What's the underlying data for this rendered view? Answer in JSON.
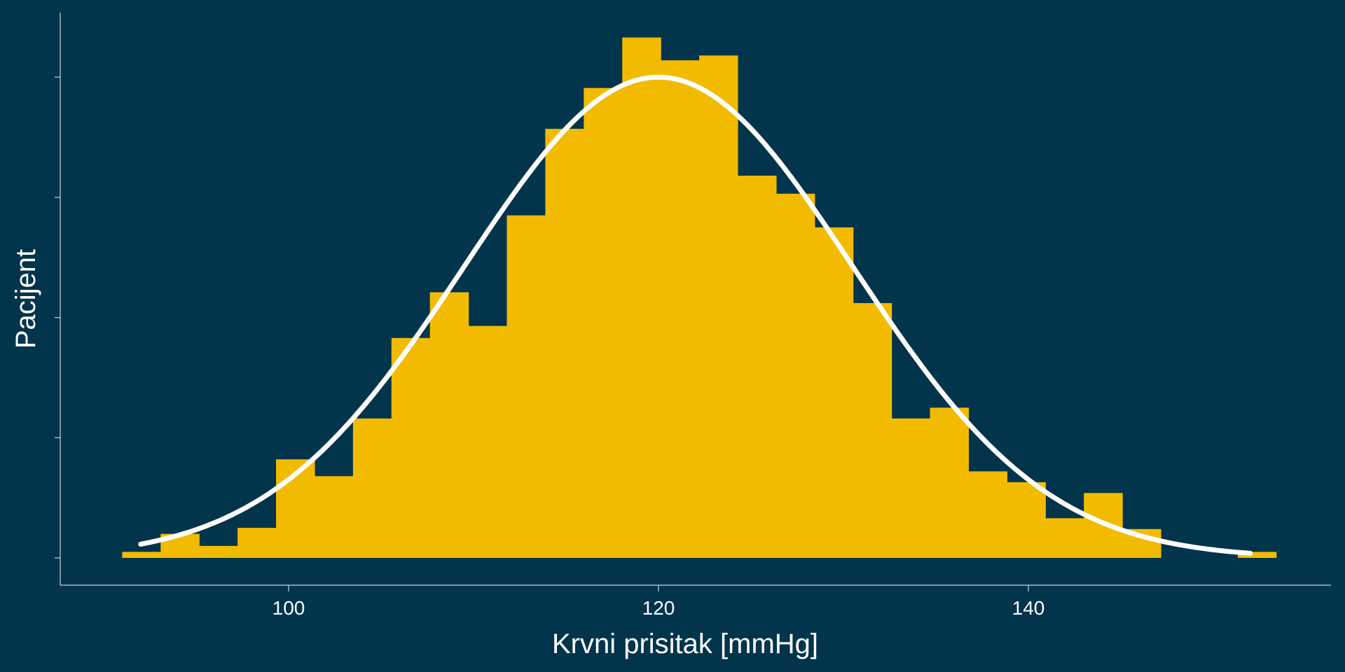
{
  "chart_data": {
    "type": "bar",
    "subtype": "histogram-with-density",
    "title": "",
    "xlabel": "Krvni prisitak [mmHg]",
    "ylabel": "Pacijent",
    "xlim": [
      88,
      156
    ],
    "ylim": [
      0,
      45
    ],
    "x_ticks": [
      100,
      120,
      140
    ],
    "x_tick_labels": [
      "100",
      "120",
      "140"
    ],
    "y_ticks": [
      0,
      10,
      20,
      30,
      40
    ],
    "y_tick_labels_shown": false,
    "bin_width": 2.08,
    "bins": [
      {
        "start": 91.0,
        "count": 0.5
      },
      {
        "start": 93.08,
        "count": 2
      },
      {
        "start": 95.16,
        "count": 1
      },
      {
        "start": 97.24,
        "count": 2.5
      },
      {
        "start": 99.32,
        "count": 8.2
      },
      {
        "start": 101.4,
        "count": 6.8
      },
      {
        "start": 103.48,
        "count": 11.6
      },
      {
        "start": 105.56,
        "count": 18.3
      },
      {
        "start": 107.64,
        "count": 22.1
      },
      {
        "start": 109.72,
        "count": 19.3
      },
      {
        "start": 111.8,
        "count": 28.5
      },
      {
        "start": 113.88,
        "count": 35.7
      },
      {
        "start": 115.96,
        "count": 39.1
      },
      {
        "start": 118.04,
        "count": 43.3
      },
      {
        "start": 120.12,
        "count": 41.4
      },
      {
        "start": 122.2,
        "count": 41.8
      },
      {
        "start": 124.28,
        "count": 31.8
      },
      {
        "start": 126.36,
        "count": 30.3
      },
      {
        "start": 128.44,
        "count": 27.5
      },
      {
        "start": 130.52,
        "count": 21.2
      },
      {
        "start": 132.6,
        "count": 11.6
      },
      {
        "start": 134.68,
        "count": 12.5
      },
      {
        "start": 136.76,
        "count": 7.2
      },
      {
        "start": 138.84,
        "count": 6.3
      },
      {
        "start": 140.92,
        "count": 3.3
      },
      {
        "start": 143.0,
        "count": 5.4
      },
      {
        "start": 145.08,
        "count": 2.4
      },
      {
        "start": 147.16,
        "count": 0
      },
      {
        "start": 149.24,
        "count": 0
      },
      {
        "start": 151.32,
        "count": 0.5
      }
    ],
    "density_curve": {
      "mean": 120,
      "sd": 10.5,
      "peak": 40,
      "x_range": [
        92,
        152
      ],
      "color": "#ffffff"
    },
    "colors": {
      "background": "#02344c",
      "bars": "#f2bb00",
      "curve": "#ffffff",
      "axis": "#c9d3d9",
      "text": "#ffffff"
    },
    "grid": false,
    "legend": "none"
  }
}
